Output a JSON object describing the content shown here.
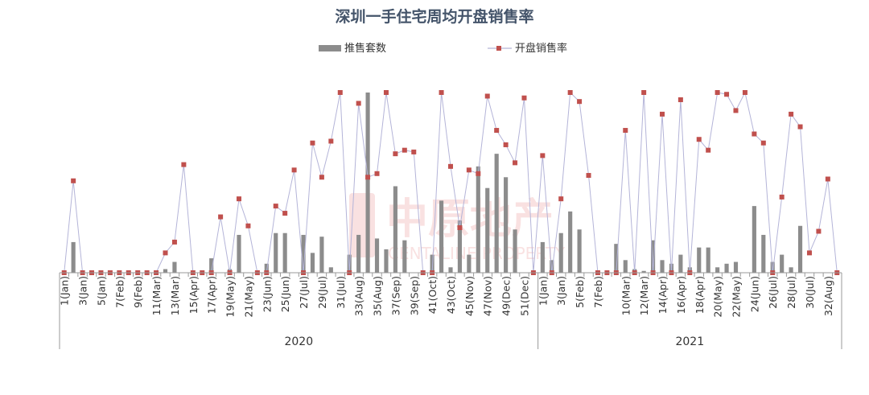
{
  "chart_data": {
    "type": "bar+line",
    "title": "深圳一手住宅周均开盘销售率",
    "legend": {
      "placement": "top-center"
    },
    "grid": false,
    "years": [
      "2020",
      "2021"
    ],
    "categories": [
      "1(Jan)",
      "2(Jan)",
      "3(Jan)",
      "4(Jan)",
      "5(Jan)",
      "6(Feb)",
      "7(Feb)",
      "8(Feb)",
      "9(Feb)",
      "10(Mar)",
      "11(Mar)",
      "12(Mar)",
      "13(Mar)",
      "14(Apr)",
      "15(Apr)",
      "16(Apr)",
      "17(Apr)",
      "18(May)",
      "19(May)",
      "20(May)",
      "21(May)",
      "22(Jun)",
      "23(Jun)",
      "24(Jun)",
      "25(Jun)",
      "26(Jul)",
      "27(Jul)",
      "28(Jul)",
      "29(Jul)",
      "30(Jul)",
      "31(Jul)",
      "32(Aug)",
      "33(Aug)",
      "34(Aug)",
      "35(Aug)",
      "36(Sep)",
      "37(Sep)",
      "38(Sep)",
      "39(Sep)",
      "40(Oct)",
      "41(Oct)",
      "42(Oct)",
      "43(Oct)",
      "44(Nov)",
      "45(Nov)",
      "46(Nov)",
      "47(Nov)",
      "48(Dec)",
      "49(Dec)",
      "50(Dec)",
      "51(Dec)",
      "52(Dec)",
      "1(Jan)",
      "2(Jan)",
      "3(Jan)",
      "4(Jan)",
      "5(Feb)",
      "6(Feb)",
      "7(Feb)",
      "8(Feb)",
      "9(Mar)",
      "10(Mar)",
      "11(Mar)",
      "12(Mar)",
      "13(Apr)",
      "14(Apr)",
      "15(Apr)",
      "16(Apr)",
      "17(Apr)",
      "18(Apr)",
      "19(May)",
      "20(May)",
      "21(May)",
      "22(May)",
      "23(Jun)",
      "24(Jun)",
      "25(Jun)",
      "26(Jul)",
      "27(Jul)",
      "28(Jul)",
      "29(Jul)",
      "30(Jul)",
      "31(Aug)",
      "32(Aug)",
      "33(Aug)"
    ],
    "tick_labels_2020": [
      "1(Jan)",
      "3(Jan)",
      "5(Jan)",
      "7(Feb)",
      "9(Feb)",
      "11(Mar)",
      "13(Mar)",
      "15(Apr)",
      "17(Apr)",
      "19(May)",
      "21(May)",
      "23(Jun)",
      "25(Jun)",
      "27(Jul)",
      "29(Jul)",
      "31(Jul)",
      "33(Aug)",
      "35(Aug)",
      "37(Sep)",
      "39(Sep)",
      "41(Oct)",
      "43(Oct)",
      "45(Nov)",
      "47(Nov)",
      "49(Dec)",
      "51(Dec)"
    ],
    "tick_labels_2021": [
      "1(Jan)",
      "3(Jan)",
      "5(Feb)",
      "7(Feb)",
      "10(Mar)",
      "12(Mar)",
      "14(Apr)",
      "16(Apr)",
      "18(Apr)",
      "20(May)",
      "22(May)",
      "24(Jun)",
      "26(Jul)",
      "28(Jul)",
      "30(Jul)",
      "32(Aug)"
    ],
    "series": [
      {
        "name": "推售套数",
        "type": "bar",
        "color": "#8c8c8c",
        "ylim": [
          0,
          100
        ],
        "values": [
          0,
          17,
          0,
          0,
          0,
          0,
          0,
          0,
          0,
          0,
          0,
          2,
          6,
          0,
          0,
          0,
          8,
          0,
          2,
          21,
          0,
          0,
          5,
          22,
          22,
          0,
          21,
          11,
          20,
          3,
          0,
          10,
          21,
          100,
          19,
          13,
          48,
          18,
          0,
          0,
          10,
          40,
          3,
          29,
          10,
          59,
          47,
          66,
          53,
          24,
          0,
          0,
          17,
          7,
          22,
          34,
          24,
          0,
          0,
          0,
          16,
          7,
          2,
          1,
          18,
          7,
          5,
          10,
          3,
          14,
          14,
          3,
          5,
          6,
          0,
          37,
          21,
          6,
          10,
          3,
          26,
          0,
          0,
          0,
          0
        ]
      },
      {
        "name": "开盘销售率",
        "type": "line",
        "line_color": "#b4b4d8",
        "marker_color": "#c0504d",
        "ylim": [
          0,
          100
        ],
        "values": [
          0,
          51,
          0,
          0,
          0,
          0,
          0,
          0,
          0,
          0,
          0,
          11,
          17,
          60,
          0,
          0,
          0,
          31,
          0,
          41,
          26,
          0,
          0,
          37,
          33,
          57,
          0,
          72,
          53,
          73,
          100,
          0,
          94,
          53,
          55,
          100,
          66,
          68,
          67,
          0,
          0,
          100,
          59,
          25,
          57,
          55,
          98,
          79,
          71,
          61,
          97,
          0,
          65,
          0,
          41,
          100,
          95,
          54,
          0,
          0,
          0,
          79,
          0,
          100,
          0,
          88,
          0,
          96,
          0,
          74,
          68,
          100,
          99,
          90,
          100,
          77,
          72,
          0,
          42,
          88,
          81,
          11,
          23,
          52,
          0
        ]
      }
    ]
  }
}
